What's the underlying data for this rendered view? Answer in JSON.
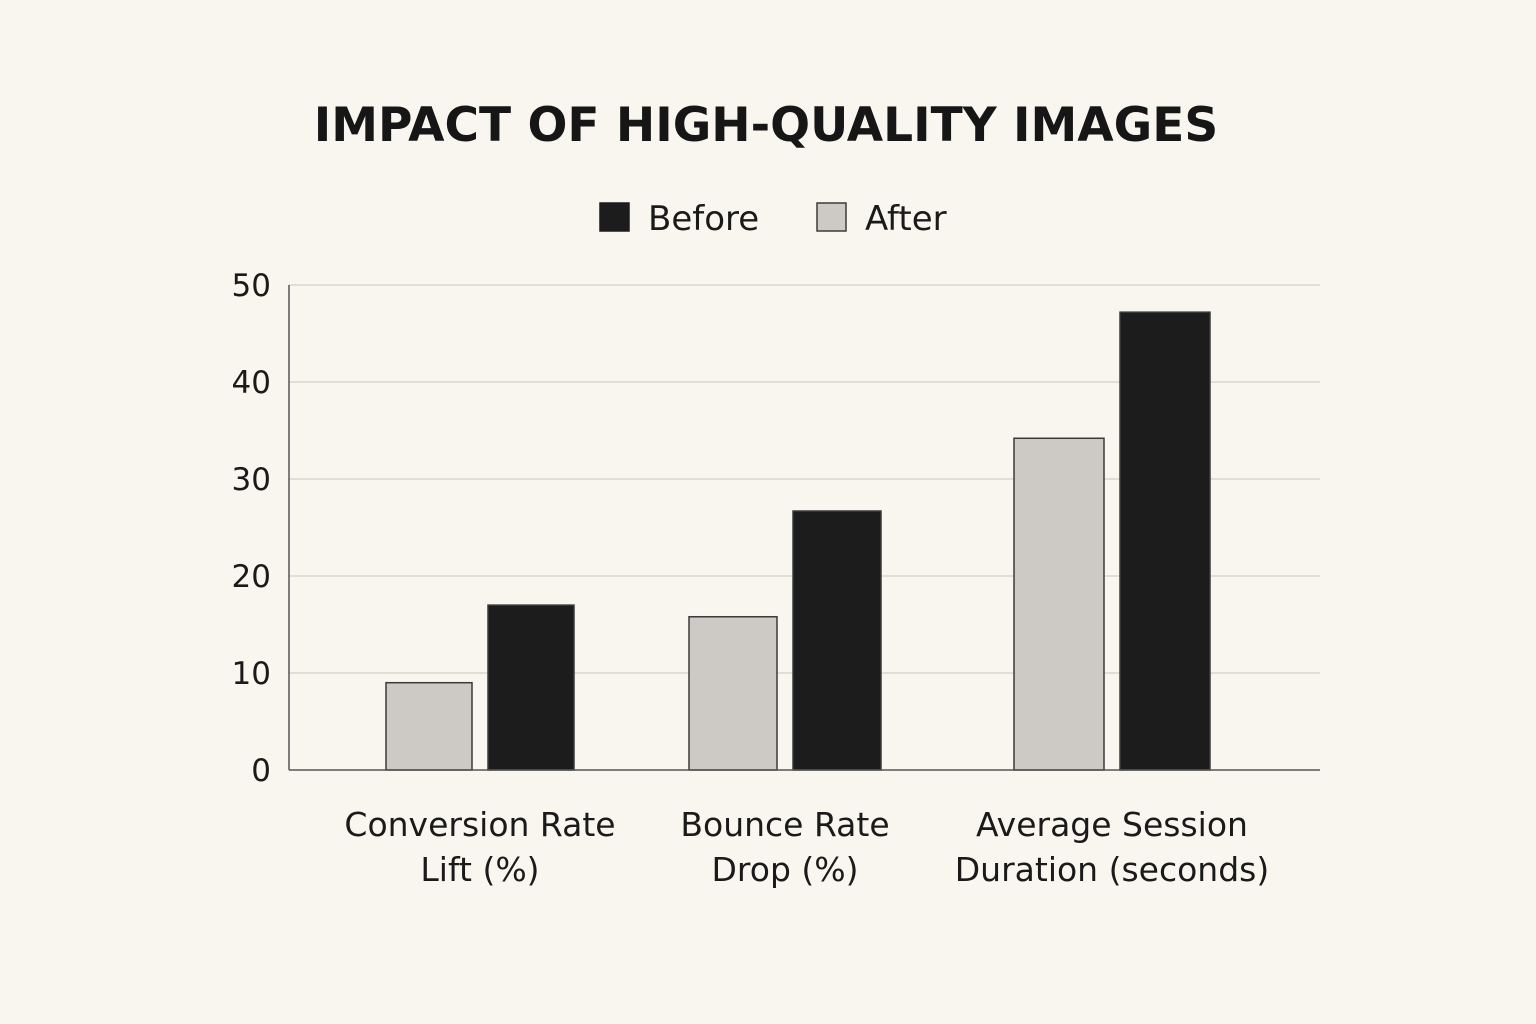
{
  "chart_data": {
    "type": "bar",
    "title": "IMPACT OF HIGH-QUALITY IMAGES",
    "xlabel": "",
    "ylabel": "",
    "categories": [
      [
        "Conversion Rate",
        "Lift (%)"
      ],
      [
        "Bounce Rate",
        "Drop (%)"
      ],
      [
        "Average Session",
        "Duration (seconds)"
      ]
    ],
    "series": [
      {
        "name": "After",
        "values": [
          9,
          15.8,
          34.2
        ],
        "color": "#cdc9c4"
      },
      {
        "name": "Before",
        "values": [
          17,
          26.7,
          47.2
        ],
        "color": "#1c1c1c"
      }
    ],
    "legend_order": [
      "Before",
      "After"
    ],
    "legend_position": "top-center",
    "ylim": [
      0,
      50
    ],
    "yticks": [
      0,
      10,
      20,
      30,
      40,
      50
    ],
    "grid": true,
    "bar_stroke": "#3a3a3a",
    "grid_color": "#d9d5ce",
    "axis_color": "#555555"
  }
}
